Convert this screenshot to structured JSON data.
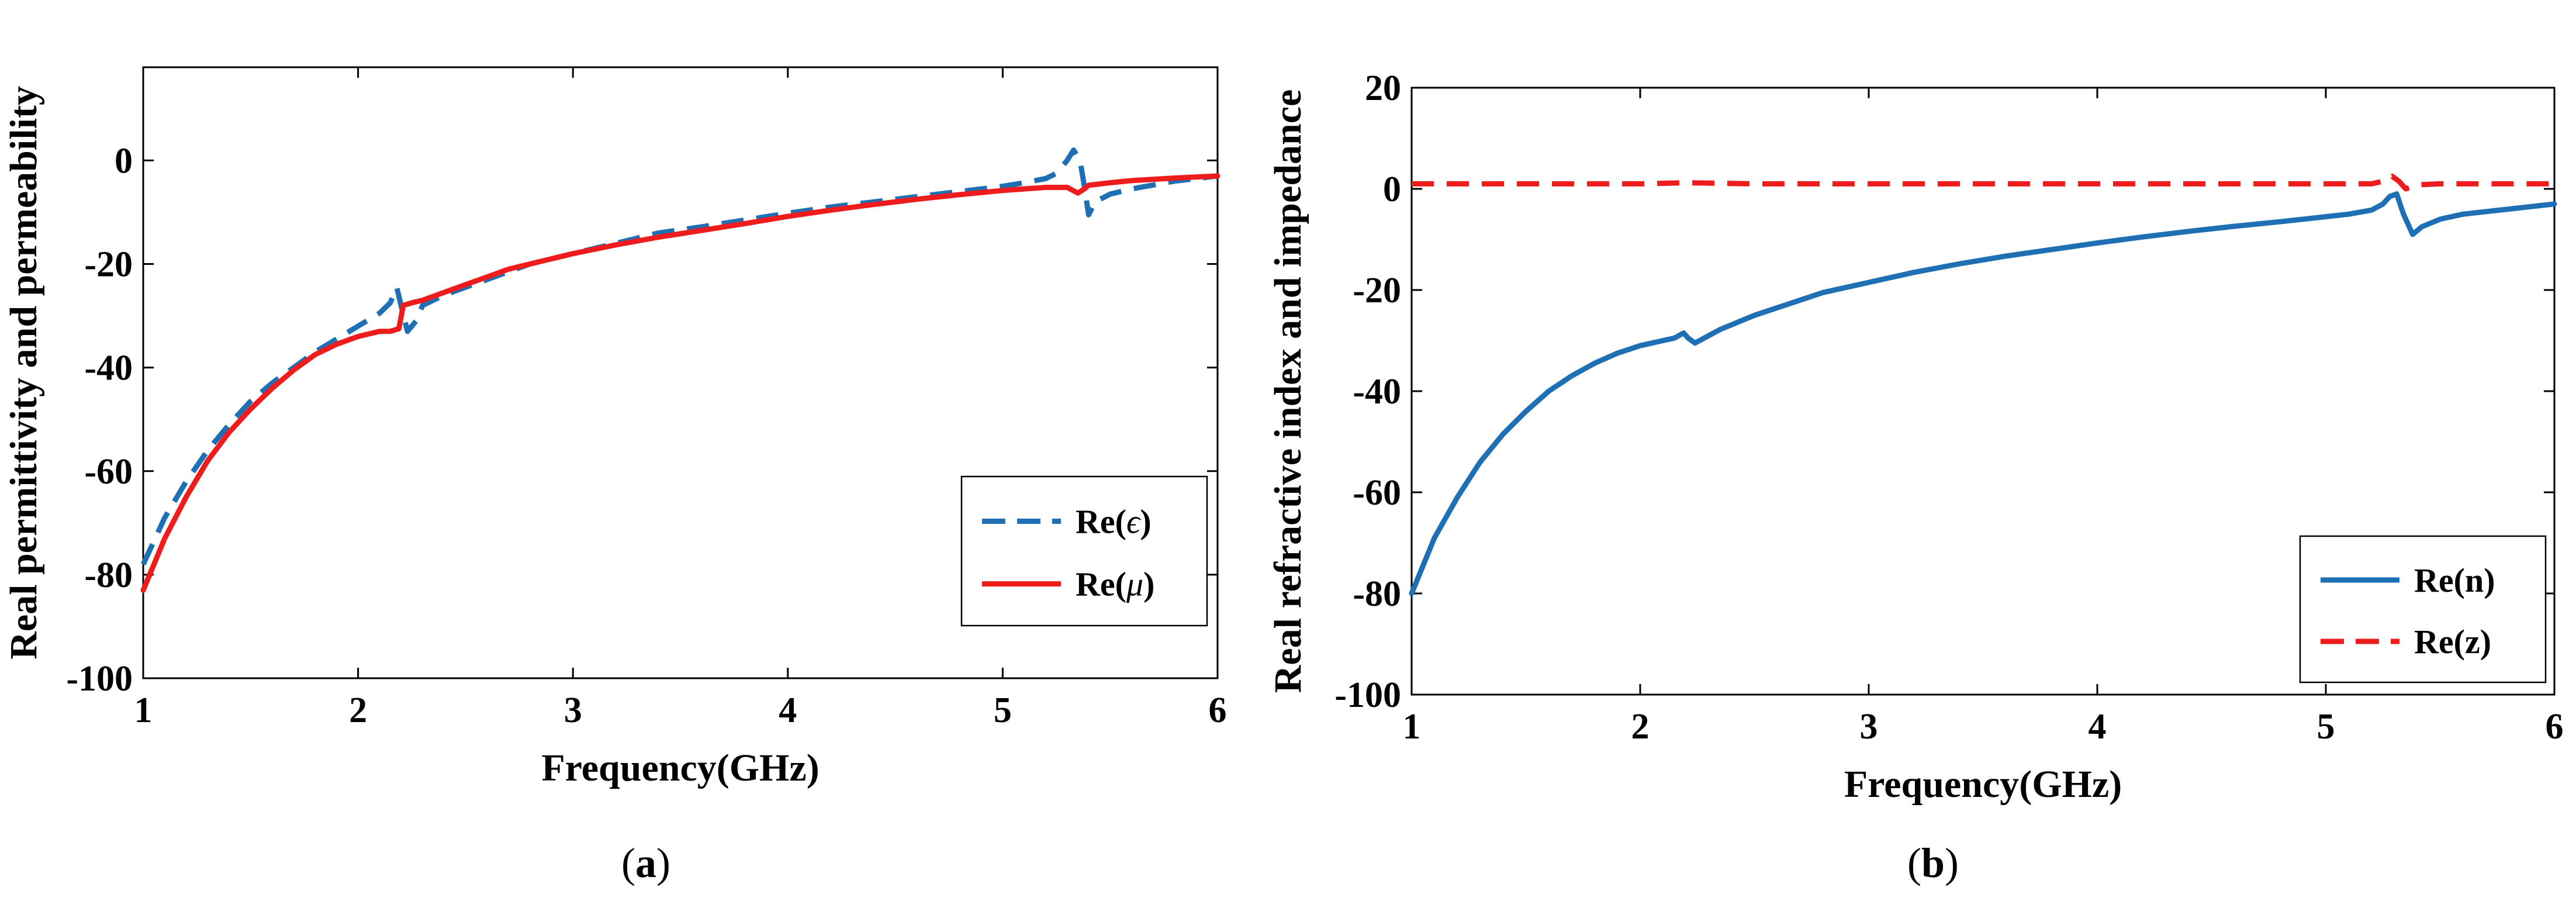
{
  "figures": [
    {
      "caption_open": "(",
      "caption_letter": "a",
      "caption_close": ")",
      "chart": {
        "type": "line",
        "xlabel": "Frequency(GHz)",
        "ylabel": "Real permittivity and permeability",
        "xlim": [
          1,
          6
        ],
        "ylim": [
          -100,
          18
        ],
        "xticks": [
          "1",
          "2",
          "3",
          "4",
          "5",
          "6"
        ],
        "yticks": [
          "-100",
          "-80",
          "-60",
          "-40",
          "-20",
          "0"
        ],
        "xtick_values": [
          1,
          2,
          3,
          4,
          5,
          6
        ],
        "ytick_values": [
          -100,
          -80,
          -60,
          -40,
          -20,
          0
        ],
        "legend_position": "middle-right",
        "series": [
          {
            "name": "Re(ε)",
            "label_prefix": "Re(",
            "label_symbol": "ϵ",
            "label_suffix": ")",
            "color": "#1f6fb4",
            "dashed": true,
            "x": [
              1.0,
              1.1,
              1.2,
              1.3,
              1.4,
              1.5,
              1.6,
              1.7,
              1.8,
              1.9,
              2.0,
              2.1,
              2.15,
              2.18,
              2.2,
              2.23,
              2.27,
              2.3,
              2.4,
              2.5,
              2.6,
              2.7,
              2.8,
              3.0,
              3.2,
              3.4,
              3.6,
              3.8,
              4.0,
              4.2,
              4.4,
              4.6,
              4.8,
              5.0,
              5.1,
              5.2,
              5.25,
              5.3,
              5.33,
              5.36,
              5.38,
              5.4,
              5.43,
              5.5,
              5.6,
              5.8,
              6.0
            ],
            "y": [
              -78,
              -69,
              -62,
              -56,
              -51,
              -46.5,
              -43,
              -40,
              -37,
              -34.5,
              -32,
              -29.5,
              -27.5,
              -24.5,
              -28,
              -33,
              -31,
              -28,
              -26,
              -24.5,
              -23,
              -21.5,
              -20,
              -18,
              -16,
              -14,
              -12.8,
              -11.5,
              -10.2,
              -9,
              -8,
              -7,
              -6,
              -5,
              -4.3,
              -3.5,
              -2.5,
              0,
              2,
              0,
              -5,
              -10.5,
              -8,
              -6.5,
              -5.5,
              -4,
              -3
            ]
          },
          {
            "name": "Re(μ)",
            "label_prefix": "Re(",
            "label_symbol": "μ",
            "label_suffix": ")",
            "color": "#ee1c1c",
            "dashed": false,
            "x": [
              1.0,
              1.1,
              1.2,
              1.3,
              1.4,
              1.5,
              1.6,
              1.7,
              1.8,
              1.9,
              2.0,
              2.1,
              2.15,
              2.19,
              2.21,
              2.25,
              2.3,
              2.4,
              2.5,
              2.6,
              2.7,
              2.8,
              3.0,
              3.2,
              3.4,
              3.6,
              3.8,
              4.0,
              4.2,
              4.4,
              4.6,
              4.8,
              5.0,
              5.1,
              5.2,
              5.3,
              5.35,
              5.38,
              5.4,
              5.5,
              5.6,
              5.8,
              6.0
            ],
            "y": [
              -83,
              -73,
              -65,
              -58,
              -52.5,
              -48,
              -44,
              -40.5,
              -37.5,
              -35.5,
              -34,
              -33,
              -33,
              -32.5,
              -28,
              -27.5,
              -27,
              -25.5,
              -24,
              -22.5,
              -21,
              -20,
              -18,
              -16.3,
              -14.8,
              -13.5,
              -12.2,
              -10.8,
              -9.6,
              -8.5,
              -7.5,
              -6.6,
              -5.8,
              -5.5,
              -5.2,
              -5.2,
              -6.3,
              -5.5,
              -4.8,
              -4.3,
              -3.9,
              -3.4,
              -3
            ]
          }
        ]
      }
    },
    {
      "caption_open": "(",
      "caption_letter": "b",
      "caption_close": ")",
      "chart": {
        "type": "line",
        "xlabel": "Frequency(GHz)",
        "ylabel": "Real refractive index and impedance",
        "xlim": [
          1,
          6
        ],
        "ylim": [
          -100,
          20
        ],
        "xticks": [
          "1",
          "2",
          "3",
          "4",
          "5",
          "6"
        ],
        "yticks": [
          "-100",
          "-80",
          "-60",
          "-40",
          "-20",
          "0",
          "20"
        ],
        "xtick_values": [
          1,
          2,
          3,
          4,
          5,
          6
        ],
        "ytick_values": [
          -100,
          -80,
          -60,
          -40,
          -20,
          0,
          20
        ],
        "legend_position": "bottom-right",
        "series": [
          {
            "name": "Re(n)",
            "label_prefix": "Re(",
            "label_symbol": "n",
            "label_suffix": ")",
            "color": "#1f6fb4",
            "dashed": false,
            "x": [
              1.0,
              1.1,
              1.2,
              1.3,
              1.4,
              1.5,
              1.6,
              1.7,
              1.8,
              1.9,
              2.0,
              2.1,
              2.15,
              2.19,
              2.21,
              2.24,
              2.28,
              2.35,
              2.5,
              2.6,
              2.7,
              2.8,
              3.0,
              3.2,
              3.4,
              3.6,
              3.8,
              4.0,
              4.2,
              4.4,
              4.6,
              4.8,
              5.0,
              5.1,
              5.2,
              5.25,
              5.28,
              5.31,
              5.34,
              5.38,
              5.42,
              5.5,
              5.6,
              5.8,
              6.0
            ],
            "y": [
              -80,
              -69,
              -61,
              -54,
              -48.5,
              -44,
              -40,
              -37,
              -34.5,
              -32.5,
              -31,
              -30,
              -29.5,
              -28.5,
              -29.5,
              -30.5,
              -29.5,
              -27.8,
              -25,
              -23.5,
              -22,
              -20.5,
              -18.5,
              -16.5,
              -14.8,
              -13.3,
              -12,
              -10.7,
              -9.5,
              -8.4,
              -7.4,
              -6.5,
              -5.5,
              -5,
              -4.2,
              -3,
              -1.5,
              -1,
              -5,
              -9,
              -7.5,
              -6,
              -5,
              -4,
              -3
            ]
          },
          {
            "name": "Re(z)",
            "label_prefix": "Re(",
            "label_symbol": "z",
            "label_suffix": ")",
            "color": "#ee1c1c",
            "dashed": true,
            "x": [
              1.0,
              1.5,
              2.0,
              2.2,
              2.5,
              3.0,
              4.0,
              5.0,
              5.2,
              5.25,
              5.29,
              5.32,
              5.35,
              5.4,
              5.5,
              6.0
            ],
            "y": [
              1,
              1,
              1,
              1.2,
              1,
              1,
              1,
              1,
              1,
              1.5,
              2.5,
              1.5,
              0,
              0.8,
              1,
              1
            ]
          }
        ]
      }
    }
  ],
  "chart_data": [
    {
      "type": "line",
      "title": "",
      "xlabel": "Frequency(GHz)",
      "ylabel": "Real permittivity and permeability",
      "xlim": [
        1,
        6
      ],
      "ylim": [
        -100,
        18
      ],
      "grid": false,
      "legend": "middle-right",
      "series": [
        {
          "name": "Re(ε)",
          "style": "dashed",
          "color": "#1f6fb4"
        },
        {
          "name": "Re(μ)",
          "style": "solid",
          "color": "#ee1c1c"
        }
      ]
    },
    {
      "type": "line",
      "title": "",
      "xlabel": "Frequency(GHz)",
      "ylabel": "Real refractive index and impedance",
      "xlim": [
        1,
        6
      ],
      "ylim": [
        -100,
        20
      ],
      "grid": false,
      "legend": "bottom-right",
      "series": [
        {
          "name": "Re(n)",
          "style": "solid",
          "color": "#1f6fb4"
        },
        {
          "name": "Re(z)",
          "style": "dashed",
          "color": "#ee1c1c"
        }
      ]
    }
  ]
}
